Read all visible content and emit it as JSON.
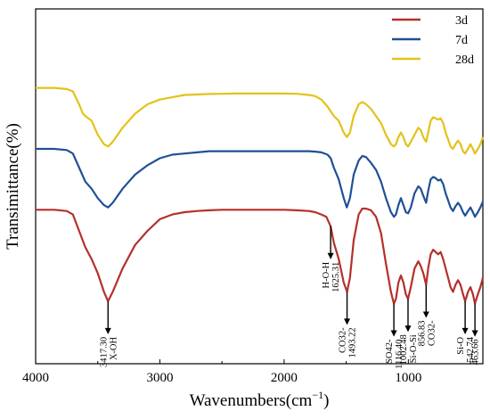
{
  "chart_data": {
    "type": "line",
    "title": "",
    "xlabel": "Wavenumbers(cm",
    "xlabel_superscript": "−1",
    "xlabel_suffix": ")",
    "ylabel": "Transimittance(%)",
    "xlim": [
      4000,
      400
    ],
    "x_reversed": true,
    "x_ticks": [
      4000,
      3000,
      2000,
      1000
    ],
    "y_ticks": [],
    "legend_position": "top-right",
    "series": [
      {
        "name": "3d",
        "color": "#b5302a",
        "x": [
          4000,
          3850,
          3750,
          3700,
          3650,
          3600,
          3550,
          3500,
          3450,
          3417.3,
          3380,
          3300,
          3200,
          3100,
          3000,
          2900,
          2800,
          2700,
          2600,
          2500,
          2400,
          2300,
          2200,
          2100,
          2000,
          1900,
          1800,
          1750,
          1700,
          1660,
          1625.31,
          1600,
          1560,
          1520,
          1493.22,
          1470,
          1440,
          1400,
          1370,
          1340,
          1300,
          1260,
          1220,
          1180,
          1140,
          1116.4,
          1100,
          1080,
          1060,
          1040,
          1020,
          1002.48,
          980,
          950,
          920,
          900,
          880,
          856.83,
          840,
          820,
          800,
          780,
          760,
          740,
          720,
          700,
          680,
          660,
          640,
          620,
          600,
          580,
          560,
          542.74,
          520,
          500,
          480,
          463.66,
          440,
          420,
          400
        ],
        "y": [
          0.55,
          0.55,
          0.545,
          0.53,
          0.46,
          0.39,
          0.34,
          0.28,
          0.2,
          0.16,
          0.2,
          0.3,
          0.4,
          0.46,
          0.51,
          0.53,
          0.54,
          0.545,
          0.548,
          0.55,
          0.55,
          0.55,
          0.55,
          0.55,
          0.55,
          0.548,
          0.545,
          0.54,
          0.53,
          0.52,
          0.48,
          0.41,
          0.34,
          0.24,
          0.2,
          0.26,
          0.42,
          0.53,
          0.555,
          0.555,
          0.548,
          0.52,
          0.45,
          0.32,
          0.2,
          0.15,
          0.17,
          0.24,
          0.27,
          0.24,
          0.19,
          0.17,
          0.22,
          0.3,
          0.33,
          0.31,
          0.28,
          0.23,
          0.3,
          0.36,
          0.38,
          0.37,
          0.36,
          0.37,
          0.34,
          0.3,
          0.26,
          0.22,
          0.2,
          0.23,
          0.25,
          0.23,
          0.19,
          0.16,
          0.2,
          0.22,
          0.19,
          0.15,
          0.19,
          0.22,
          0.26
        ]
      },
      {
        "name": "7d",
        "color": "#1f5096",
        "x": [
          4000,
          3850,
          3750,
          3700,
          3650,
          3600,
          3550,
          3500,
          3450,
          3417.3,
          3380,
          3300,
          3200,
          3100,
          3000,
          2900,
          2800,
          2700,
          2600,
          2500,
          2400,
          2300,
          2200,
          2100,
          2000,
          1900,
          1800,
          1750,
          1700,
          1650,
          1625,
          1600,
          1560,
          1520,
          1495,
          1470,
          1440,
          1400,
          1370,
          1340,
          1300,
          1260,
          1220,
          1180,
          1140,
          1116,
          1100,
          1080,
          1060,
          1040,
          1020,
          1002,
          980,
          950,
          920,
          900,
          880,
          857,
          840,
          820,
          800,
          780,
          760,
          740,
          720,
          700,
          680,
          660,
          640,
          620,
          600,
          580,
          560,
          543,
          520,
          500,
          480,
          464,
          440,
          420,
          400
        ],
        "y": [
          0.81,
          0.81,
          0.805,
          0.79,
          0.73,
          0.67,
          0.64,
          0.6,
          0.57,
          0.56,
          0.58,
          0.64,
          0.7,
          0.74,
          0.77,
          0.785,
          0.79,
          0.795,
          0.8,
          0.8,
          0.8,
          0.8,
          0.8,
          0.8,
          0.8,
          0.8,
          0.8,
          0.798,
          0.795,
          0.785,
          0.77,
          0.73,
          0.68,
          0.6,
          0.56,
          0.6,
          0.7,
          0.76,
          0.78,
          0.775,
          0.75,
          0.72,
          0.67,
          0.6,
          0.54,
          0.52,
          0.53,
          0.57,
          0.6,
          0.57,
          0.54,
          0.535,
          0.56,
          0.62,
          0.65,
          0.64,
          0.61,
          0.58,
          0.63,
          0.68,
          0.69,
          0.685,
          0.675,
          0.68,
          0.66,
          0.62,
          0.59,
          0.56,
          0.545,
          0.565,
          0.58,
          0.565,
          0.54,
          0.525,
          0.545,
          0.56,
          0.54,
          0.52,
          0.54,
          0.56,
          0.585
        ]
      },
      {
        "name": "28d",
        "color": "#e3c21a",
        "x": [
          4000,
          3850,
          3750,
          3700,
          3650,
          3620,
          3600,
          3550,
          3500,
          3450,
          3417.3,
          3380,
          3300,
          3200,
          3100,
          3000,
          2900,
          2800,
          2700,
          2600,
          2500,
          2400,
          2300,
          2200,
          2100,
          2000,
          1900,
          1800,
          1750,
          1700,
          1650,
          1625,
          1600,
          1560,
          1520,
          1495,
          1470,
          1440,
          1400,
          1370,
          1340,
          1300,
          1260,
          1220,
          1180,
          1140,
          1116,
          1100,
          1080,
          1060,
          1040,
          1020,
          1002,
          980,
          950,
          920,
          900,
          880,
          857,
          840,
          820,
          800,
          780,
          760,
          740,
          720,
          700,
          680,
          660,
          640,
          620,
          600,
          580,
          560,
          543,
          520,
          500,
          480,
          464,
          440,
          420,
          400
        ],
        "y": [
          1.07,
          1.07,
          1.065,
          1.055,
          1.0,
          0.96,
          0.95,
          0.93,
          0.87,
          0.83,
          0.82,
          0.84,
          0.9,
          0.96,
          1.0,
          1.02,
          1.03,
          1.04,
          1.042,
          1.044,
          1.045,
          1.046,
          1.046,
          1.046,
          1.046,
          1.046,
          1.045,
          1.04,
          1.035,
          1.02,
          0.99,
          0.97,
          0.95,
          0.93,
          0.88,
          0.86,
          0.88,
          0.95,
          1.0,
          1.01,
          1.0,
          0.98,
          0.95,
          0.92,
          0.87,
          0.83,
          0.82,
          0.83,
          0.86,
          0.88,
          0.86,
          0.83,
          0.82,
          0.84,
          0.87,
          0.9,
          0.89,
          0.86,
          0.84,
          0.88,
          0.93,
          0.945,
          0.94,
          0.935,
          0.94,
          0.92,
          0.88,
          0.85,
          0.82,
          0.81,
          0.83,
          0.845,
          0.83,
          0.8,
          0.79,
          0.81,
          0.83,
          0.81,
          0.79,
          0.81,
          0.83,
          0.86
        ]
      }
    ],
    "annotations": [
      {
        "x": 3417.3,
        "lines": [
          "3417.30",
          "X-OH"
        ]
      },
      {
        "x": 1625.31,
        "lines": [
          "H-O-H",
          "1625.31"
        ]
      },
      {
        "x": 1493.22,
        "lines": [
          "CO32-",
          "1493.22"
        ]
      },
      {
        "x": 1116.4,
        "lines": [
          "SO42-",
          "1116.40"
        ]
      },
      {
        "x": 1002.48,
        "lines": [
          "1002.48",
          "Si-O-Si"
        ]
      },
      {
        "x": 856.83,
        "lines": [
          "856.83",
          "CO32-"
        ]
      },
      {
        "x": 542.74,
        "lines": [
          "Si-O",
          "542.74"
        ]
      },
      {
        "x": 463.66,
        "lines": [
          "463.66"
        ]
      }
    ]
  }
}
